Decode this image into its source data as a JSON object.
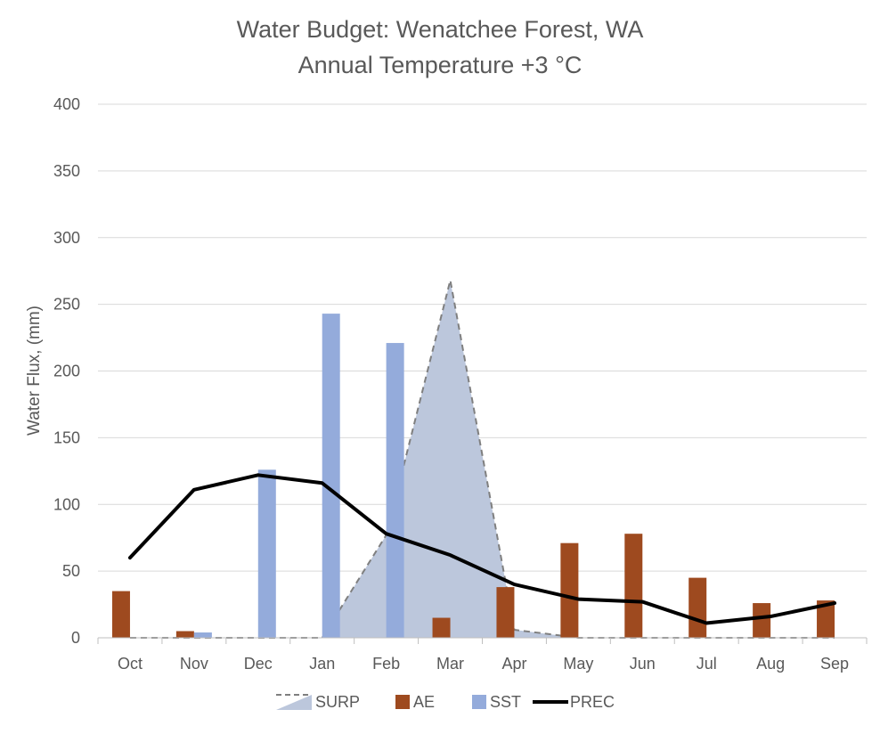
{
  "chart_data": {
    "type": "bar",
    "title": "Water Budget:  Wenatchee Forest, WA",
    "subtitle": "Annual Temperature +3 °C",
    "ylabel": "Water Flux, (mm)",
    "xlabel": "",
    "ylim": [
      0,
      400
    ],
    "yticks": [
      0,
      50,
      100,
      150,
      200,
      250,
      300,
      350,
      400
    ],
    "grid": true,
    "legend_position": "bottom",
    "categories": [
      "Oct",
      "Nov",
      "Dec",
      "Jan",
      "Feb",
      "Mar",
      "Apr",
      "May",
      "Jun",
      "Jul",
      "Aug",
      "Sep"
    ],
    "series": [
      {
        "name": "SURP",
        "kind": "area",
        "color": "#BCC7DC",
        "line_color": "#7F7F7F",
        "values": [
          0,
          0,
          0,
          0,
          77,
          268,
          6,
          0,
          0,
          0,
          0,
          0
        ]
      },
      {
        "name": "AE",
        "kind": "bar",
        "color": "#9E4A1F",
        "values": [
          35,
          5,
          0,
          0,
          0,
          15,
          38,
          71,
          78,
          45,
          26,
          28
        ]
      },
      {
        "name": "SST",
        "kind": "bar",
        "color": "#94ABDB",
        "values": [
          0,
          4,
          126,
          243,
          221,
          0,
          0,
          0,
          0,
          0,
          0,
          0
        ]
      },
      {
        "name": "PREC",
        "kind": "line",
        "color": "#000000",
        "values": [
          60,
          111,
          122,
          116,
          78,
          62,
          40,
          29,
          27,
          11,
          16,
          26
        ]
      }
    ]
  }
}
